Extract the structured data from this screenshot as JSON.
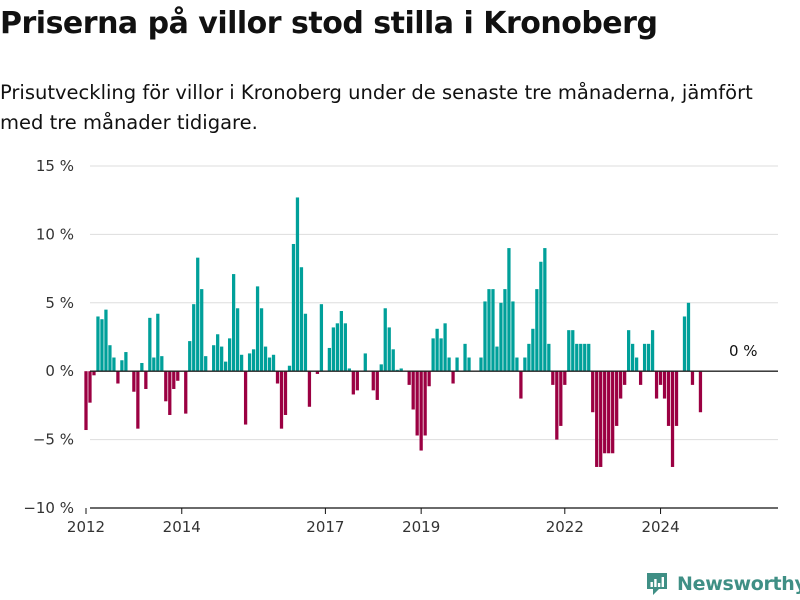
{
  "title": "Priserna på villor stod stilla i Kronoberg",
  "subtitle": "Prisutveckling för villor i Kronoberg under de senaste tre månaderna, jämfört med tre månader tidigare.",
  "brand": "Newsworthy",
  "colors": {
    "positive": "#00a09a",
    "negative": "#9b0042",
    "grid": "#dddddd",
    "zero_line": "#222222",
    "brand": "#3f8f85"
  },
  "chart_data": {
    "type": "bar",
    "ylim": [
      -10,
      15
    ],
    "yticks": [
      -10,
      -5,
      0,
      5,
      10,
      15
    ],
    "ytick_labels": [
      "−10 %",
      "−5 %",
      "0 %",
      "5 %",
      "10 %",
      "15 %"
    ],
    "xticks": [
      2012,
      2014,
      2017,
      2019,
      2022,
      2024
    ],
    "xtick_labels": [
      "2012",
      "2014",
      "2017",
      "2019",
      "2022",
      "2024"
    ],
    "annotation": "0 %",
    "grid": true,
    "start": "2012-01",
    "frequency": "monthly",
    "values": [
      -4.3,
      -2.3,
      -0.3,
      4.0,
      3.8,
      4.5,
      1.9,
      1.0,
      -0.9,
      0.8,
      1.4,
      0.0,
      -1.5,
      -4.2,
      0.6,
      -1.3,
      3.9,
      1.0,
      4.2,
      1.1,
      -2.2,
      -3.2,
      -1.3,
      -0.7,
      0.0,
      -3.1,
      2.2,
      4.9,
      8.3,
      6.0,
      1.1,
      0.0,
      1.9,
      2.7,
      1.8,
      0.7,
      2.4,
      7.1,
      4.6,
      1.2,
      -3.9,
      1.3,
      1.6,
      6.2,
      4.6,
      1.8,
      1.0,
      1.2,
      -0.9,
      -4.2,
      -3.2,
      0.4,
      9.3,
      12.7,
      7.6,
      4.2,
      -2.6,
      0.0,
      -0.2,
      4.9,
      0.0,
      1.7,
      3.2,
      3.5,
      4.4,
      3.5,
      0.2,
      -1.7,
      -1.4,
      0.0,
      1.3,
      0.0,
      -1.4,
      -2.1,
      0.5,
      4.6,
      3.2,
      1.6,
      0.1,
      0.2,
      0.0,
      -1.0,
      -2.8,
      -4.7,
      -5.8,
      -4.7,
      -1.1,
      2.4,
      3.1,
      2.4,
      3.5,
      1.0,
      -0.9,
      1.0,
      0.0,
      2.0,
      1.0,
      0.0,
      0.0,
      1.0,
      5.1,
      6.0,
      6.0,
      1.8,
      5.0,
      6.0,
      9.0,
      5.1,
      1.0,
      -2.0,
      1.0,
      2.0,
      3.1,
      6.0,
      8.0,
      9.0,
      2.0,
      -1.0,
      -5.0,
      -4.0,
      -1.0,
      3.0,
      3.0,
      2.0,
      2.0,
      2.0,
      2.0,
      -3.0,
      -7.0,
      -7.0,
      -6.0,
      -6.0,
      -6.0,
      -4.0,
      -2.0,
      -1.0,
      3.0,
      2.0,
      1.0,
      -1.0,
      2.0,
      2.0,
      3.0,
      -2.0,
      -1.0,
      -2.0,
      -4.0,
      -7.0,
      -4.0,
      0.0,
      4.0,
      5.0,
      -1.0,
      0.0,
      -3.0,
      0.0
    ]
  }
}
